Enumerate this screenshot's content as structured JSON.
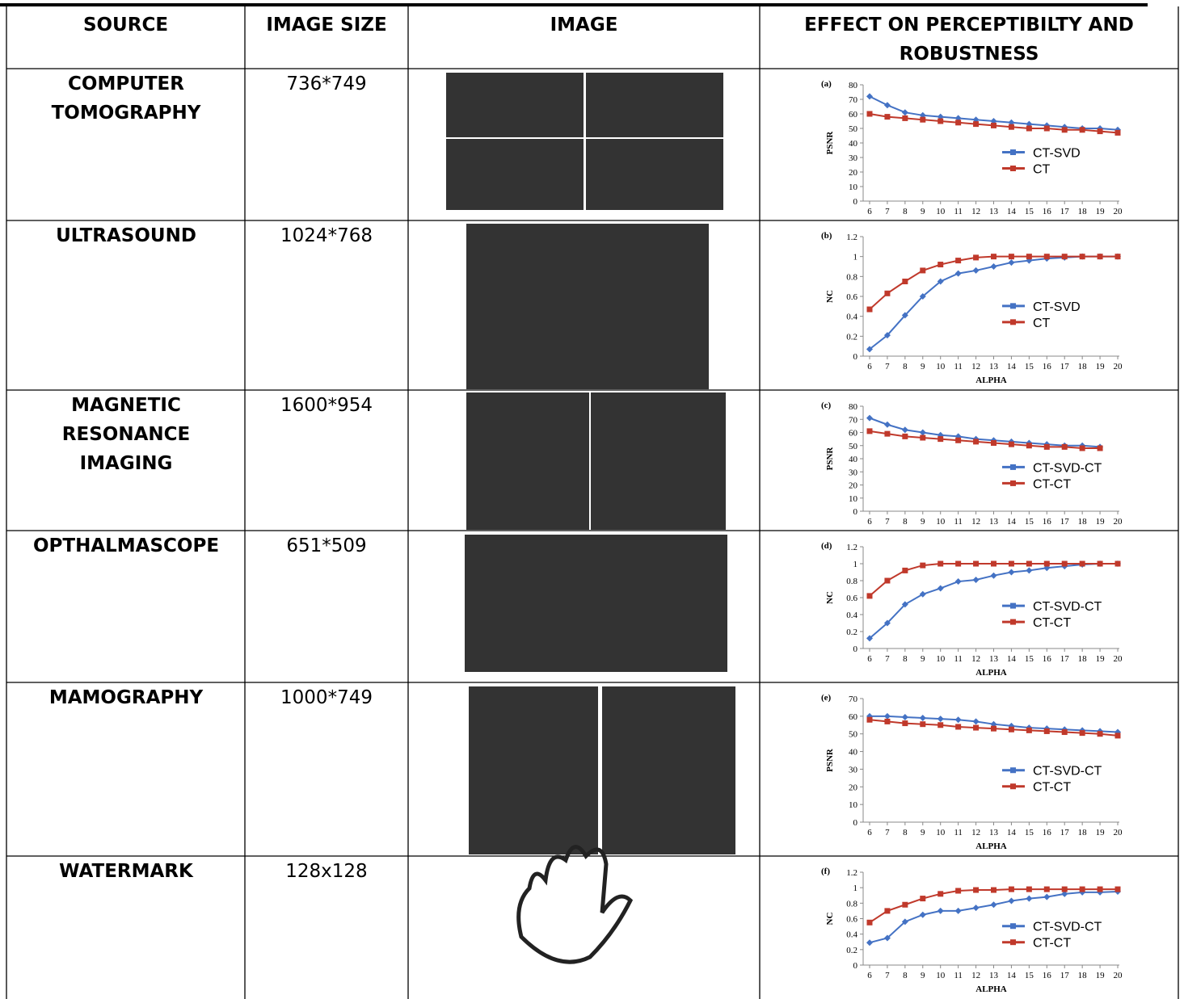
{
  "table": {
    "header": {
      "source": [
        "SOURCE"
      ],
      "size": [
        "IMAGE SIZE"
      ],
      "image": [
        "IMAGE"
      ],
      "effect": [
        "EFFECT ON PERCEPTIBILTY AND",
        "ROBUSTNESS"
      ]
    },
    "rows": [
      {
        "source": [
          "COMPUTER",
          "TOMOGRAPHY"
        ],
        "size": "736*749",
        "chart": {
          "type": "line",
          "label": "(a)",
          "ylabel": "PSNR",
          "x": [
            6,
            7,
            8,
            9,
            10,
            11,
            12,
            13,
            14,
            15,
            16,
            17,
            18,
            19,
            20
          ],
          "xticks": [
            6,
            7,
            8,
            9,
            10,
            11,
            12,
            13,
            14,
            15,
            16,
            17,
            18,
            19,
            20
          ],
          "xlim": [
            6,
            20
          ],
          "ylim": [
            0,
            80
          ],
          "yticks": [
            0,
            10,
            20,
            30,
            40,
            50,
            60,
            70,
            80
          ],
          "series": [
            {
              "name": "CT-SVD",
              "color": "#4472c4",
              "marker": "diamond",
              "values": [
                72,
                66,
                61,
                59,
                58,
                57,
                56,
                55,
                54,
                53,
                52,
                51,
                50,
                50,
                49
              ]
            },
            {
              "name": "CT",
              "color": "#c0392b",
              "marker": "square",
              "values": [
                60,
                58,
                57,
                56,
                55,
                54,
                53,
                52,
                51,
                50,
                50,
                49,
                49,
                48,
                47
              ]
            }
          ]
        }
      },
      {
        "source": [
          "ULTRASOUND"
        ],
        "size": "1024*768",
        "chart": {
          "type": "line",
          "label": "(b)",
          "ylabel": "NC",
          "xlabel": "ALPHA",
          "x": [
            6,
            7,
            8,
            9,
            10,
            11,
            12,
            13,
            14,
            15,
            16,
            17,
            18,
            19,
            20
          ],
          "xticks": [
            6,
            7,
            8,
            9,
            10,
            11,
            12,
            13,
            14,
            15,
            16,
            17,
            18,
            19,
            20
          ],
          "xlim": [
            6,
            20
          ],
          "ylim": [
            0,
            1.2
          ],
          "yticks": [
            0,
            0.2,
            0.4,
            0.6,
            0.8,
            1,
            1.2
          ],
          "series": [
            {
              "name": "CT-SVD",
              "color": "#4472c4",
              "marker": "diamond",
              "values": [
                0.07,
                0.21,
                0.41,
                0.6,
                0.75,
                0.83,
                0.86,
                0.9,
                0.94,
                0.96,
                0.98,
                0.99,
                1,
                1,
                1
              ]
            },
            {
              "name": "CT",
              "color": "#c0392b",
              "marker": "square",
              "values": [
                0.47,
                0.63,
                0.75,
                0.86,
                0.92,
                0.96,
                0.99,
                1,
                1,
                1,
                1,
                1,
                1,
                1,
                1
              ]
            }
          ]
        }
      },
      {
        "source": [
          "MAGNETIC",
          "RESONANCE",
          "IMAGING"
        ],
        "size": "1600*954",
        "chart": {
          "type": "line",
          "label": "(c)",
          "ylabel": "PSNR",
          "x": [
            6,
            7,
            8,
            9,
            10,
            11,
            12,
            13,
            14,
            15,
            16,
            17,
            18,
            19
          ],
          "xticks": [
            6,
            7,
            8,
            9,
            10,
            11,
            12,
            13,
            14,
            15,
            16,
            17,
            18,
            19,
            20
          ],
          "xlim": [
            6,
            20
          ],
          "ylim": [
            0,
            80
          ],
          "yticks": [
            0,
            10,
            20,
            30,
            40,
            50,
            60,
            70,
            80
          ],
          "series": [
            {
              "name": "CT-SVD-CT",
              "color": "#4472c4",
              "marker": "diamond",
              "values": [
                71,
                66,
                62,
                60,
                58,
                57,
                55,
                54,
                53,
                52,
                51,
                50,
                50,
                49
              ]
            },
            {
              "name": "CT-CT",
              "color": "#c0392b",
              "marker": "square",
              "values": [
                61,
                59,
                57,
                56,
                55,
                54,
                53,
                52,
                51,
                50,
                49,
                49,
                48,
                48
              ]
            }
          ]
        }
      },
      {
        "source": [
          "OPTHALMASCOPE"
        ],
        "size": "651*509",
        "chart": {
          "type": "line",
          "label": "(d)",
          "ylabel": "NC",
          "xlabel": "ALPHA",
          "x": [
            6,
            7,
            8,
            9,
            10,
            11,
            12,
            13,
            14,
            15,
            16,
            17,
            18,
            19,
            20
          ],
          "xticks": [
            6,
            7,
            8,
            9,
            10,
            11,
            12,
            13,
            14,
            15,
            16,
            17,
            18,
            19,
            20
          ],
          "xlim": [
            6,
            20
          ],
          "ylim": [
            0,
            1.2
          ],
          "yticks": [
            0,
            0.2,
            0.4,
            0.6,
            0.8,
            1,
            1.2
          ],
          "series": [
            {
              "name": "CT-SVD-CT",
              "color": "#4472c4",
              "marker": "diamond",
              "values": [
                0.12,
                0.3,
                0.52,
                0.64,
                0.71,
                0.79,
                0.81,
                0.86,
                0.9,
                0.92,
                0.95,
                0.97,
                0.99,
                1,
                1
              ]
            },
            {
              "name": "CT-CT",
              "color": "#c0392b",
              "marker": "square",
              "values": [
                0.62,
                0.8,
                0.92,
                0.98,
                1,
                1,
                1,
                1,
                1,
                1,
                1,
                1,
                1,
                1,
                1
              ]
            }
          ]
        }
      },
      {
        "source": [
          "MAMOGRAPHY"
        ],
        "size": "1000*749",
        "chart": {
          "type": "line",
          "label": "(e)",
          "ylabel": "PSNR",
          "xlabel": "ALPHA",
          "x": [
            6,
            7,
            8,
            9,
            10,
            11,
            12,
            13,
            14,
            15,
            16,
            17,
            18,
            19,
            20
          ],
          "xticks": [
            6,
            7,
            8,
            9,
            10,
            11,
            12,
            13,
            14,
            15,
            16,
            17,
            18,
            19,
            20
          ],
          "xlim": [
            6,
            20
          ],
          "ylim": [
            0,
            70
          ],
          "yticks": [
            0,
            10,
            20,
            30,
            40,
            50,
            60,
            70
          ],
          "series": [
            {
              "name": "CT-SVD-CT",
              "color": "#4472c4",
              "marker": "diamond",
              "values": [
                60,
                60,
                59.5,
                59,
                58.5,
                58,
                57,
                55.5,
                54.5,
                53.5,
                53,
                52.5,
                52,
                51.5,
                51
              ]
            },
            {
              "name": "CT-CT",
              "color": "#c0392b",
              "marker": "square",
              "values": [
                58,
                57,
                56,
                55.5,
                55,
                54,
                53.5,
                53,
                52.5,
                52,
                51.5,
                51,
                50.5,
                50,
                49
              ]
            }
          ]
        }
      },
      {
        "source": [
          "WATERMARK"
        ],
        "size": "128x128",
        "chart": {
          "type": "line",
          "label": "(f)",
          "ylabel": "NC",
          "xlabel": "ALPHA",
          "x": [
            6,
            7,
            8,
            9,
            10,
            11,
            12,
            13,
            14,
            15,
            16,
            17,
            18,
            19,
            20
          ],
          "xticks": [
            6,
            7,
            8,
            9,
            10,
            11,
            12,
            13,
            14,
            15,
            16,
            17,
            18,
            19,
            20
          ],
          "xlim": [
            6,
            20
          ],
          "ylim": [
            0,
            1.2
          ],
          "yticks": [
            0,
            0.2,
            0.4,
            0.6,
            0.8,
            1,
            1.2
          ],
          "series": [
            {
              "name": "CT-SVD-CT",
              "color": "#4472c4",
              "marker": "diamond",
              "values": [
                0.29,
                0.35,
                0.56,
                0.65,
                0.7,
                0.7,
                0.74,
                0.78,
                0.83,
                0.86,
                0.88,
                0.92,
                0.94,
                0.94,
                0.95
              ]
            },
            {
              "name": "CT-CT",
              "color": "#c0392b",
              "marker": "square",
              "values": [
                0.55,
                0.7,
                0.78,
                0.86,
                0.92,
                0.96,
                0.97,
                0.97,
                0.98,
                0.98,
                0.98,
                0.98,
                0.98,
                0.98,
                0.98
              ]
            }
          ]
        }
      }
    ]
  }
}
